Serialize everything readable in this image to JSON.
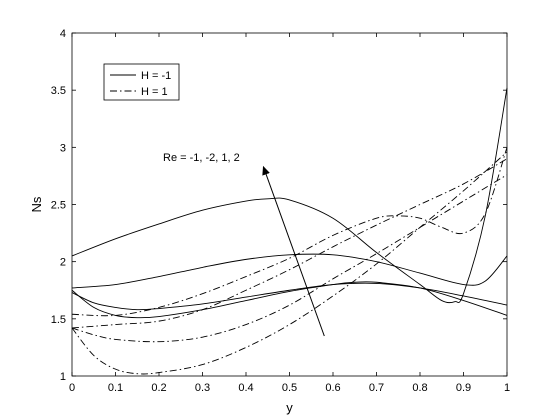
{
  "chart_data": {
    "type": "line",
    "xlabel": "y",
    "ylabel": "Ns",
    "xlim": [
      0,
      1
    ],
    "ylim": [
      1,
      4
    ],
    "xticks": [
      "0",
      "0.1",
      "0.2",
      "0.3",
      "0.4",
      "0.5",
      "0.6",
      "0.7",
      "0.8",
      "0.9",
      "1"
    ],
    "yticks": [
      "1",
      "1.5",
      "2",
      "2.5",
      "3",
      "3.5",
      "4"
    ],
    "legend_position": "top-left",
    "legend": [
      {
        "label": "H = -1",
        "style": "solid"
      },
      {
        "label": "H = 1",
        "style": "dashdot"
      }
    ],
    "annotation": {
      "text": "Re = -1, -2, 1, 2",
      "arrow_from": [
        0.58,
        1.35
      ],
      "arrow_to": [
        0.44,
        2.83
      ]
    },
    "series": [
      {
        "style": "solid",
        "x": [
          0,
          0.1,
          0.2,
          0.3,
          0.4,
          0.45,
          0.5,
          0.6,
          0.7,
          0.8,
          0.85,
          0.88,
          0.9,
          0.95,
          1
        ],
        "y": [
          2.05,
          2.2,
          2.33,
          2.45,
          2.53,
          2.55,
          2.54,
          2.38,
          2.08,
          1.8,
          1.66,
          1.65,
          1.72,
          2.4,
          3.52
        ]
      },
      {
        "style": "solid",
        "x": [
          0,
          0.1,
          0.2,
          0.3,
          0.4,
          0.5,
          0.6,
          0.7,
          0.8,
          0.9,
          0.95,
          1
        ],
        "y": [
          1.77,
          1.8,
          1.87,
          1.95,
          2.02,
          2.06,
          2.06,
          2.0,
          1.9,
          1.8,
          1.83,
          2.05
        ]
      },
      {
        "style": "solid",
        "x": [
          0,
          0.05,
          0.1,
          0.15,
          0.2,
          0.3,
          0.4,
          0.5,
          0.6,
          0.7,
          0.8,
          0.9,
          1
        ],
        "y": [
          1.73,
          1.64,
          1.6,
          1.58,
          1.59,
          1.63,
          1.69,
          1.75,
          1.8,
          1.81,
          1.77,
          1.7,
          1.62
        ]
      },
      {
        "style": "solid",
        "x": [
          0,
          0.05,
          0.1,
          0.15,
          0.2,
          0.3,
          0.4,
          0.5,
          0.6,
          0.65,
          0.7,
          0.8,
          0.9,
          1
        ],
        "y": [
          1.75,
          1.6,
          1.53,
          1.51,
          1.52,
          1.58,
          1.66,
          1.74,
          1.8,
          1.82,
          1.82,
          1.77,
          1.66,
          1.53
        ]
      },
      {
        "style": "dashdot",
        "x": [
          0,
          0.1,
          0.2,
          0.3,
          0.4,
          0.5,
          0.6,
          0.7,
          0.75,
          0.8,
          0.85,
          0.9,
          0.95,
          1
        ],
        "y": [
          1.54,
          1.53,
          1.6,
          1.72,
          1.87,
          2.03,
          2.23,
          2.38,
          2.4,
          2.38,
          2.3,
          2.25,
          2.42,
          3.0
        ]
      },
      {
        "style": "dashdot",
        "x": [
          0,
          0.1,
          0.2,
          0.3,
          0.4,
          0.5,
          0.6,
          0.7,
          0.8,
          0.9,
          1
        ],
        "y": [
          1.42,
          1.45,
          1.48,
          1.58,
          1.75,
          1.93,
          2.13,
          2.32,
          2.5,
          2.68,
          2.9
        ]
      },
      {
        "style": "dashdot",
        "x": [
          0,
          0.05,
          0.1,
          0.2,
          0.3,
          0.4,
          0.5,
          0.6,
          0.7,
          0.8,
          0.9,
          1
        ],
        "y": [
          1.42,
          1.36,
          1.32,
          1.3,
          1.34,
          1.45,
          1.62,
          1.85,
          2.07,
          2.3,
          2.53,
          2.76
        ]
      },
      {
        "style": "dashdot",
        "x": [
          0,
          0.05,
          0.1,
          0.15,
          0.2,
          0.3,
          0.4,
          0.5,
          0.6,
          0.7,
          0.8,
          0.9,
          1
        ],
        "y": [
          1.42,
          1.18,
          1.06,
          1.02,
          1.03,
          1.1,
          1.25,
          1.45,
          1.7,
          1.98,
          2.3,
          2.62,
          2.96
        ]
      }
    ]
  }
}
